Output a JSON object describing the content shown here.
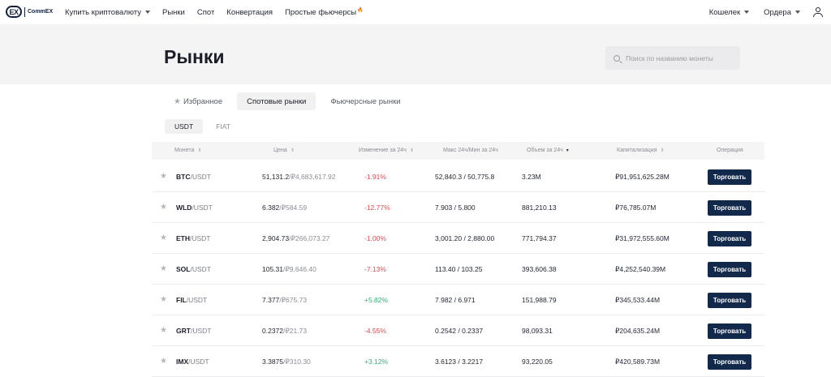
{
  "nav": {
    "logo_text": "CommEX",
    "logo_mark": "EX",
    "links": [
      {
        "label": "Купить криптовалюту",
        "has_caret": true
      },
      {
        "label": "Рынки"
      },
      {
        "label": "Спот"
      },
      {
        "label": "Конвертация"
      },
      {
        "label": "Простые фьючерсы",
        "badge": "🔥"
      }
    ],
    "right": [
      {
        "label": "Кошелек"
      },
      {
        "label": "Ордера"
      }
    ]
  },
  "hero": {
    "title": "Рынки",
    "search_placeholder": "Поиск по названию монеты"
  },
  "tabs": [
    {
      "label": "Избранное",
      "icon": "star-icon"
    },
    {
      "label": "Спотовые рынки",
      "active": true
    },
    {
      "label": "Фьючерсные рынки"
    }
  ],
  "subtabs": [
    {
      "label": "USDT",
      "active": true
    },
    {
      "label": "FIAT"
    }
  ],
  "table": {
    "headers": {
      "coin": "Монета",
      "price": "Цена",
      "change": "Изменение за 24ч",
      "high_low": "Макс 24ч/Мин за 24ч",
      "volume": "Объем за 24ч",
      "cap": "Капитализация",
      "action": "Операция"
    },
    "trade_label": "Торговать",
    "rows": [
      {
        "base": "BTC",
        "quote": "/USDT",
        "price": "51,131.2",
        "price_rub": "/₽4,683,617.92",
        "change": "-1.91%",
        "dir": "neg",
        "high_low": "52,840.3 / 50,775.8",
        "volume": "3.23M",
        "cap": "₽91,951,625.28M"
      },
      {
        "base": "WLD",
        "quote": "/USDT",
        "price": "6.382",
        "price_rub": "/₽584.59",
        "change": "-12.77%",
        "dir": "neg",
        "high_low": "7.903 / 5.800",
        "volume": "881,210.13",
        "cap": "₽76,785.07M"
      },
      {
        "base": "ETH",
        "quote": "/USDT",
        "price": "2,904.73",
        "price_rub": "/₽266,073.27",
        "change": "-1.00%",
        "dir": "neg",
        "high_low": "3,001.20 / 2,880.00",
        "volume": "771,794.37",
        "cap": "₽31,972,555.60M"
      },
      {
        "base": "SOL",
        "quote": "/USDT",
        "price": "105.31",
        "price_rub": "/₽9,646.40",
        "change": "-7.13%",
        "dir": "neg",
        "high_low": "113.40 / 103.25",
        "volume": "393,606.38",
        "cap": "₽4,252,540.39M"
      },
      {
        "base": "FIL",
        "quote": "/USDT",
        "price": "7.377",
        "price_rub": "/₽675.73",
        "change": "+5.82%",
        "dir": "pos",
        "high_low": "7.982 / 6.971",
        "volume": "151,988.79",
        "cap": "₽345,533.44M"
      },
      {
        "base": "GRT",
        "quote": "/USDT",
        "price": "0.2372",
        "price_rub": "/₽21.73",
        "change": "-4.55%",
        "dir": "neg",
        "high_low": "0.2542 / 0.2337",
        "volume": "98,093.31",
        "cap": "₽204,635.24M"
      },
      {
        "base": "IMX",
        "quote": "/USDT",
        "price": "3.3875",
        "price_rub": "/₽310.30",
        "change": "+3.12%",
        "dir": "pos",
        "high_low": "3.6123 / 3.2217",
        "volume": "93,220.05",
        "cap": "₽420,589.73M"
      }
    ]
  },
  "colors": {
    "negative": "#e5484d",
    "positive": "#22b573",
    "button": "#13294b"
  }
}
